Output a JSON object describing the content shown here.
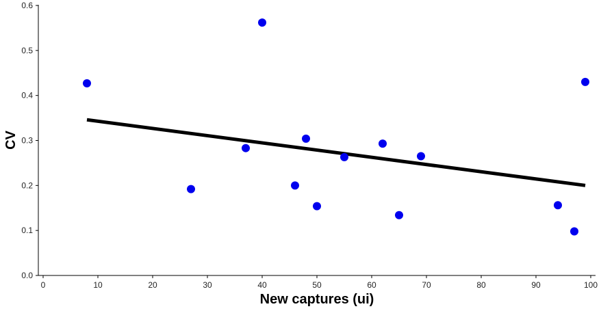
{
  "chart_data": {
    "type": "scatter",
    "xlabel": "New captures (ui)",
    "ylabel": "CV",
    "xlim": [
      0,
      100
    ],
    "ylim": [
      0,
      0.6
    ],
    "x_ticks": [
      0,
      10,
      20,
      30,
      40,
      50,
      60,
      70,
      80,
      90,
      100
    ],
    "y_ticks": [
      0.0,
      0.1,
      0.2,
      0.3,
      0.4,
      0.5,
      0.6
    ],
    "x_tick_labels": [
      "0",
      "10",
      "20",
      "30",
      "40",
      "50",
      "60",
      "70",
      "80",
      "90",
      "100"
    ],
    "y_tick_labels": [
      "0.0",
      "0.1",
      "0.2",
      "0.3",
      "0.4",
      "0.5",
      "0.6"
    ],
    "grid": false,
    "points": [
      {
        "x": 8,
        "y": 0.427
      },
      {
        "x": 27,
        "y": 0.192
      },
      {
        "x": 37,
        "y": 0.283
      },
      {
        "x": 40,
        "y": 0.562
      },
      {
        "x": 46,
        "y": 0.2
      },
      {
        "x": 48,
        "y": 0.304
      },
      {
        "x": 50,
        "y": 0.154
      },
      {
        "x": 55,
        "y": 0.263
      },
      {
        "x": 62,
        "y": 0.293
      },
      {
        "x": 65,
        "y": 0.134
      },
      {
        "x": 69,
        "y": 0.265
      },
      {
        "x": 94,
        "y": 0.156
      },
      {
        "x": 97,
        "y": 0.098
      },
      {
        "x": 99,
        "y": 0.43
      }
    ],
    "trend_line": {
      "x": [
        8,
        99
      ],
      "y": [
        0.346,
        0.2
      ]
    },
    "point_color": "#0000ee",
    "line_color": "#000000"
  }
}
